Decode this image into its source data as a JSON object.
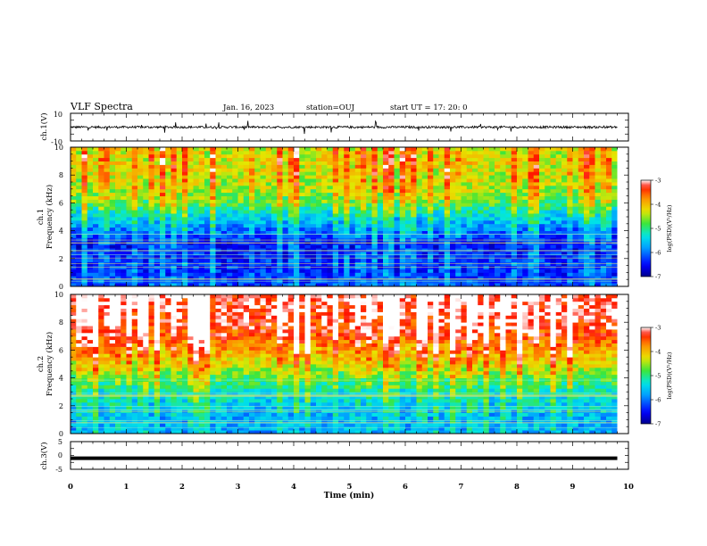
{
  "header": {
    "title": "VLF Spectra",
    "date": "Jan. 16, 2023",
    "station": "station=OUJ",
    "start": "start UT =  17: 20: 0"
  },
  "chart_data": [
    {
      "type": "line",
      "panel": "ch1-waveform",
      "ylabel": "ch.1(V)",
      "ylim": [
        -10,
        10
      ],
      "yticks": [
        "10",
        "-10"
      ],
      "xlim": [
        0,
        10
      ],
      "series": [
        {
          "values_approx": "noisy signal near 0 V with spikes up to about ±5 V",
          "x_range": [
            0,
            9.8
          ]
        }
      ]
    },
    {
      "type": "heatmap",
      "panel": "ch1-spectrogram",
      "ylabel_line1": "ch.1",
      "ylabel_line2": "Frequency (kHz)",
      "ylim": [
        0,
        10
      ],
      "yticks": [
        "0",
        "2",
        "4",
        "6",
        "8",
        "10"
      ],
      "xlim": [
        0,
        10
      ],
      "data_extent_x": [
        0,
        9.8
      ],
      "colorbar": {
        "label": "log(PSD)(V²/Hz)",
        "range": [
          -7,
          -3
        ],
        "ticks": [
          "-3",
          "-4",
          "-5",
          "-6",
          "-7"
        ]
      },
      "profile_log_psd": [
        {
          "f_khz": 0,
          "value": -6.3
        },
        {
          "f_khz": 1,
          "value": -6.4
        },
        {
          "f_khz": 2,
          "value": -6.4
        },
        {
          "f_khz": 3,
          "value": -6.6
        },
        {
          "f_khz": 4,
          "value": -6.1
        },
        {
          "f_khz": 5,
          "value": -5.6
        },
        {
          "f_khz": 6,
          "value": -4.9
        },
        {
          "f_khz": 7,
          "value": -4.6
        },
        {
          "f_khz": 8,
          "value": -4.5
        },
        {
          "f_khz": 9,
          "value": -4.4
        },
        {
          "f_khz": 10,
          "value": -4.5
        }
      ]
    },
    {
      "type": "heatmap",
      "panel": "ch2-spectrogram",
      "ylabel_line1": "ch.2",
      "ylabel_line2": "Frequency (kHz)",
      "ylim": [
        0,
        10
      ],
      "yticks": [
        "0",
        "2",
        "4",
        "6",
        "8",
        "10"
      ],
      "xlim": [
        0,
        10
      ],
      "data_extent_x": [
        0,
        9.8
      ],
      "colorbar": {
        "label": "log(PSD)(V²/Hz)",
        "range": [
          -7,
          -3
        ],
        "ticks": [
          "-3",
          "-4",
          "-5",
          "-6",
          "-7"
        ]
      },
      "profile_log_psd": [
        {
          "f_khz": 0,
          "value": -5.8
        },
        {
          "f_khz": 1,
          "value": -5.8
        },
        {
          "f_khz": 2,
          "value": -5.6
        },
        {
          "f_khz": 3,
          "value": -5.4
        },
        {
          "f_khz": 4,
          "value": -4.9
        },
        {
          "f_khz": 5,
          "value": -4.4
        },
        {
          "f_khz": 6,
          "value": -4.0
        },
        {
          "f_khz": 7,
          "value": -3.6
        },
        {
          "f_khz": 8,
          "value": -3.4
        },
        {
          "f_khz": 9,
          "value": -3.3
        },
        {
          "f_khz": 10,
          "value": -3.3
        }
      ]
    },
    {
      "type": "line",
      "panel": "ch3-waveform",
      "ylabel": "ch.3(V)",
      "ylim": [
        -5,
        5
      ],
      "yticks": [
        "5",
        "0",
        "-5"
      ],
      "xlim": [
        0,
        10
      ],
      "xlabel": "Time (min)",
      "xticks": [
        "0",
        "1",
        "2",
        "3",
        "4",
        "5",
        "6",
        "7",
        "8",
        "9",
        "10"
      ],
      "series": [
        {
          "values_approx": "constant near -1 V",
          "x_range": [
            0,
            9.8
          ]
        }
      ]
    }
  ]
}
